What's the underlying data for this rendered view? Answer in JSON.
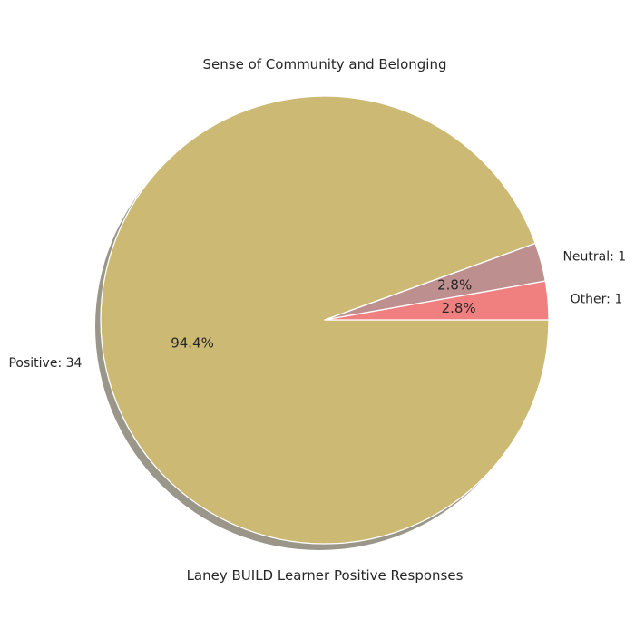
{
  "chart_data": {
    "type": "pie",
    "title": "Sense of Community and Belonging",
    "xlabel": "Laney BUILD Learner Positive Responses",
    "ylabel": "",
    "slices": [
      {
        "label": "Positive: 34",
        "value": 34,
        "pct_label": "94.4%",
        "color": "#ccb974"
      },
      {
        "label": "Neutral: 1",
        "value": 1,
        "pct_label": "2.8%",
        "color": "#bd8f8e"
      },
      {
        "label": "Other: 1",
        "value": 1,
        "pct_label": "2.8%",
        "color": "#f08080"
      }
    ],
    "start_angle_deg": 0,
    "direction": "clockwise",
    "shadow": true,
    "edge_color": "#ffffff",
    "shadow_color": "#9a978a"
  }
}
